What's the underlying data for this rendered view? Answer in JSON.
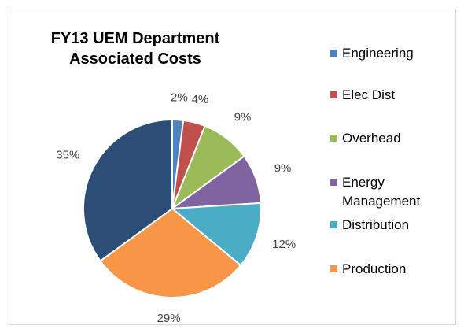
{
  "chart_data": {
    "type": "pie",
    "title": "FY13 UEM Department Associated Costs",
    "categories": [
      "Engineering",
      "Elec Dist",
      "Overhead",
      "Energy Management",
      "Distribution",
      "Production",
      null
    ],
    "values": [
      2,
      4,
      9,
      9,
      12,
      29,
      35
    ],
    "value_labels": [
      "2%",
      "4%",
      "9%",
      "9%",
      "12%",
      "29%",
      "35%"
    ],
    "colors": [
      "#4f81bd",
      "#c0504d",
      "#9bbb59",
      "#8064a2",
      "#4bacc6",
      "#f79646",
      "#2c4d75"
    ],
    "legend": "right"
  }
}
